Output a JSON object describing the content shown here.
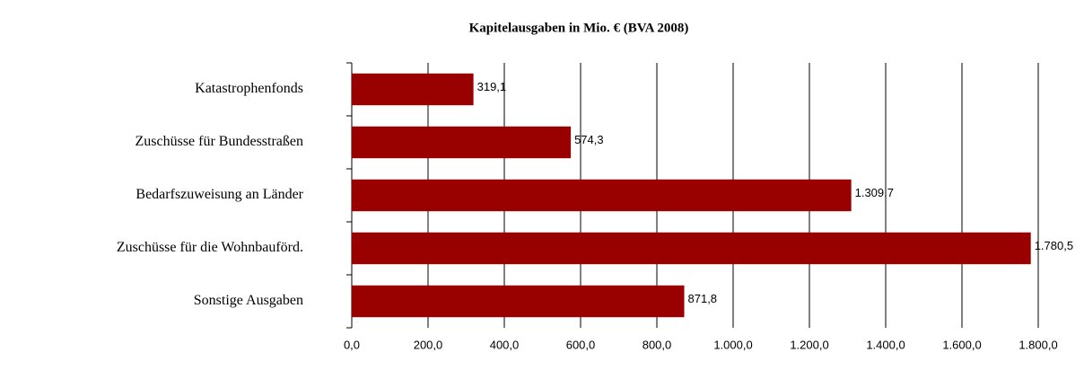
{
  "chart_data": {
    "type": "bar",
    "orientation": "horizontal",
    "title": "Kapitelausgaben in Mio. € (BVA 2008)",
    "categories": [
      "Katastrophenfonds",
      "Zuschüsse für Bundesstraßen",
      "Bedarfszuweisung an Länder",
      "Zuschüsse für die Wohnbauförd.",
      "Sonstige Ausgaben"
    ],
    "values": [
      319.1,
      574.3,
      1309.7,
      1780.5,
      871.8
    ],
    "value_labels": [
      "319,1",
      "574,3",
      "1.309,7",
      "1.780,5",
      "871,8"
    ],
    "color": "#990000",
    "xlim": [
      0,
      1800
    ],
    "xticks": [
      {
        "value": 0,
        "label": "0,0"
      },
      {
        "value": 200,
        "label": "200,0"
      },
      {
        "value": 400,
        "label": "400,0"
      },
      {
        "value": 600,
        "label": "600,0"
      },
      {
        "value": 800,
        "label": "800,0"
      },
      {
        "value": 1000,
        "label": "1.000,0"
      },
      {
        "value": 1200,
        "label": "1.200,0"
      },
      {
        "value": 1400,
        "label": "1.400,0"
      },
      {
        "value": 1600,
        "label": "1.600,0"
      },
      {
        "value": 1800,
        "label": "1.800,0"
      }
    ],
    "grid": true
  }
}
